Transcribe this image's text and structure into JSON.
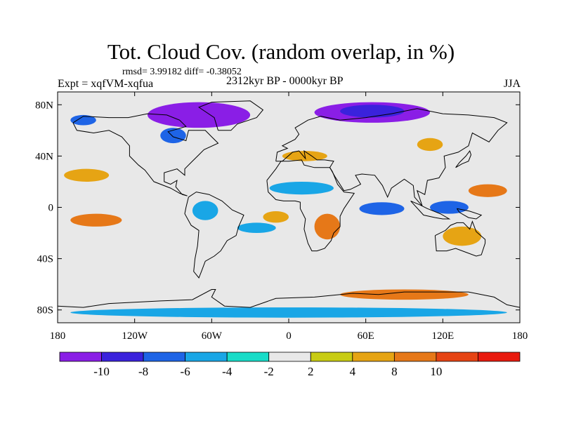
{
  "header": {
    "title": "Tot. Cloud Cov. (random overlap, in %)",
    "stats": "rmsd= 3.99182 diff= -0.38052",
    "experiment": "Expt = xqfVM-xqfua",
    "period": "2312kyr BP - 0000kyr BP",
    "season": "JJA"
  },
  "chart_data": {
    "type": "heatmap",
    "title": "Tot. Cloud Cov. (random overlap, in %)",
    "projection": "cylindrical equidistant, coastlines overlaid",
    "xlim": [
      -180,
      180
    ],
    "ylim": [
      -90,
      90
    ],
    "x_ticks": [
      {
        "value": -180,
        "label": "180"
      },
      {
        "value": -120,
        "label": "120W"
      },
      {
        "value": -60,
        "label": "60W"
      },
      {
        "value": 0,
        "label": "0"
      },
      {
        "value": 60,
        "label": "60E"
      },
      {
        "value": 120,
        "label": "120E"
      },
      {
        "value": 180,
        "label": "180"
      }
    ],
    "y_ticks": [
      {
        "value": 80,
        "label": "80N"
      },
      {
        "value": 40,
        "label": "40N"
      },
      {
        "value": 0,
        "label": "0"
      },
      {
        "value": -40,
        "label": "40S"
      },
      {
        "value": -80,
        "label": "80S"
      }
    ],
    "colorbar": {
      "bins": [
        {
          "color": "#8a1ee6"
        },
        {
          "color": "#3a22dc"
        },
        {
          "color": "#1e64e6"
        },
        {
          "color": "#19a6e6"
        },
        {
          "color": "#18dcc8"
        },
        {
          "color": "#e8e8e8"
        },
        {
          "color": "#c8cc14"
        },
        {
          "color": "#e6a414"
        },
        {
          "color": "#e67818"
        },
        {
          "color": "#e64414"
        },
        {
          "color": "#e81a0e"
        }
      ],
      "labels": [
        {
          "edge": 1,
          "text": "-10"
        },
        {
          "edge": 2,
          "text": "-8"
        },
        {
          "edge": 3,
          "text": "-6"
        },
        {
          "edge": 4,
          "text": "-4"
        },
        {
          "edge": 5,
          "text": "-2"
        },
        {
          "edge": 6,
          "text": "2"
        },
        {
          "edge": 7,
          "text": "4"
        },
        {
          "edge": 8,
          "text": "8"
        },
        {
          "edge": 9,
          "text": "10"
        }
      ]
    },
    "regions": [
      {
        "name": "Arctic Canada / Greenland decrease",
        "lon": [
          -110,
          -30
        ],
        "lat": [
          62,
          82
        ],
        "level": -10
      },
      {
        "name": "Siberia decrease",
        "lon": [
          20,
          110
        ],
        "lat": [
          66,
          82
        ],
        "level": -10
      },
      {
        "name": "North Siberia decrease core",
        "lon": [
          40,
          90
        ],
        "lat": [
          70,
          80
        ],
        "level": -8
      },
      {
        "name": "Alaska decrease",
        "lon": [
          -170,
          -150
        ],
        "lat": [
          64,
          72
        ],
        "level": -6
      },
      {
        "name": "Hudson decrease",
        "lon": [
          -100,
          -80
        ],
        "lat": [
          50,
          62
        ],
        "level": -6
      },
      {
        "name": "Central Pacific increase",
        "lon": [
          -170,
          -130
        ],
        "lat": [
          -15,
          -5
        ],
        "level": 8
      },
      {
        "name": "North Pacific increase",
        "lon": [
          -175,
          -140
        ],
        "lat": [
          20,
          30
        ],
        "level": 4
      },
      {
        "name": "West Pacific increase",
        "lon": [
          140,
          170
        ],
        "lat": [
          8,
          18
        ],
        "level": 8
      },
      {
        "name": "Southern Africa increase",
        "lon": [
          20,
          40
        ],
        "lat": [
          -25,
          -5
        ],
        "level": 8
      },
      {
        "name": "East Atlantic increase",
        "lon": [
          -20,
          0
        ],
        "lat": [
          -12,
          -3
        ],
        "level": 4
      },
      {
        "name": "Sahel decrease",
        "lon": [
          -15,
          35
        ],
        "lat": [
          10,
          20
        ],
        "level": -4
      },
      {
        "name": "Equatorial Indian Ocean decrease",
        "lon": [
          55,
          90
        ],
        "lat": [
          -6,
          4
        ],
        "level": -6
      },
      {
        "name": "Maritime Continent decrease",
        "lon": [
          110,
          140
        ],
        "lat": [
          -5,
          5
        ],
        "level": -6
      },
      {
        "name": "Amazon decrease",
        "lon": [
          -75,
          -55
        ],
        "lat": [
          -10,
          5
        ],
        "level": -4
      },
      {
        "name": "Australia increase",
        "lon": [
          120,
          150
        ],
        "lat": [
          -30,
          -15
        ],
        "level": 4
      },
      {
        "name": "Southern Ocean increase band",
        "lon": [
          40,
          140
        ],
        "lat": [
          -72,
          -64
        ],
        "level": 8
      },
      {
        "name": "Antarctic coast decrease band",
        "lon": [
          -170,
          170
        ],
        "lat": [
          -86,
          -78
        ],
        "level": -4
      },
      {
        "name": "South Atlantic decrease",
        "lon": [
          -40,
          -10
        ],
        "lat": [
          -20,
          -12
        ],
        "level": -4
      },
      {
        "name": "Europe increase",
        "lon": [
          -5,
          30
        ],
        "lat": [
          36,
          44
        ],
        "level": 4
      },
      {
        "name": "Mongolia increase",
        "lon": [
          100,
          120
        ],
        "lat": [
          44,
          54
        ],
        "level": 4
      }
    ]
  }
}
